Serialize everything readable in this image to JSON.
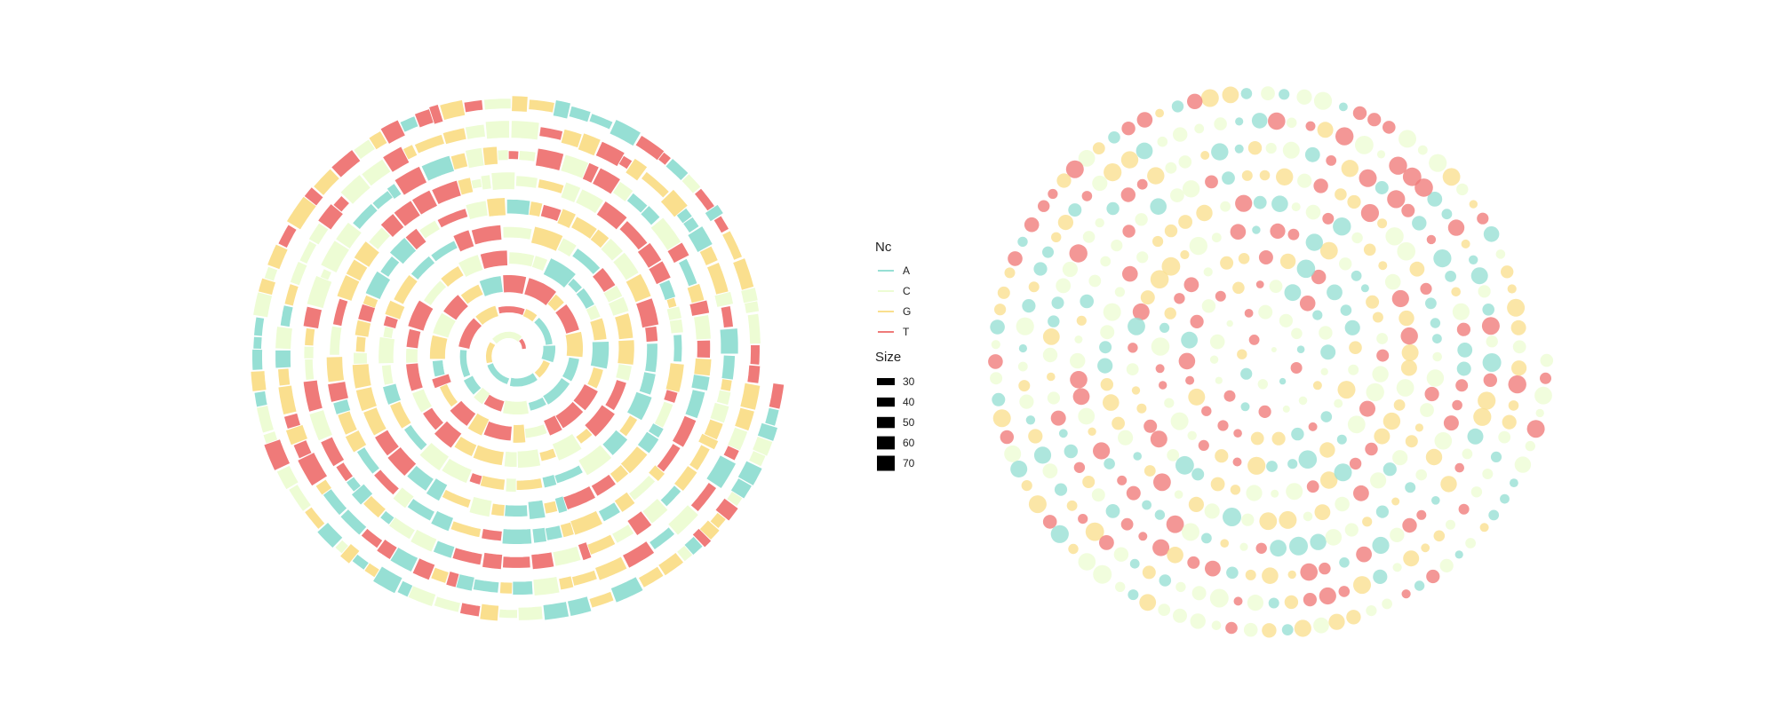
{
  "chart_data": [
    {
      "type": "spiral-segments",
      "panel": "left",
      "title": "",
      "xlabel": "",
      "ylabel": "",
      "description_stat": {
        "turns": 10,
        "segments": 520
      },
      "seed": 7
    },
    {
      "type": "spiral-bubbles",
      "panel": "right",
      "title": "",
      "xlabel": "",
      "ylabel": "",
      "description_stat": {
        "turns": 10,
        "points": 470
      },
      "seed": 19
    }
  ],
  "legend": {
    "nc_title": "Nc",
    "nc_items": [
      {
        "label": "A",
        "color": "#96DFD4"
      },
      {
        "label": "C",
        "color": "#EDFCD4"
      },
      {
        "label": "G",
        "color": "#FADF8E"
      },
      {
        "label": "T",
        "color": "#EF7A79"
      }
    ],
    "size_title": "Size",
    "size_items": [
      {
        "label": "30",
        "value": 30
      },
      {
        "label": "40",
        "value": 40
      },
      {
        "label": "50",
        "value": 50
      },
      {
        "label": "60",
        "value": 60
      },
      {
        "label": "70",
        "value": 70
      }
    ],
    "size_key_color": "#000000"
  }
}
